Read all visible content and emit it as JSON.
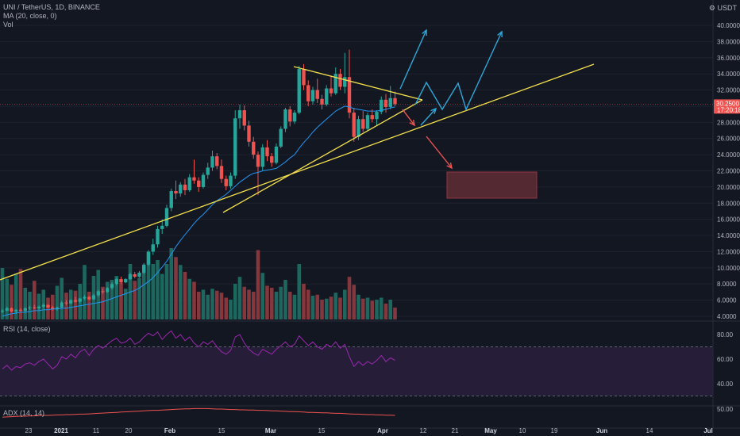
{
  "header": {
    "symbol": "UNI / TetherUS, 1D, BINANCE",
    "ma_label": "MA (20, close, 0)",
    "vol_label": "Vol",
    "rsi_label": "RSI (14, close)",
    "adx_label": "ADX (14, 14)",
    "currency": "USDT"
  },
  "price_tag": {
    "price": "30.2500",
    "countdown": "17:20:18",
    "color": "#ef5350"
  },
  "colors": {
    "background": "#131722",
    "up": "#26a69a",
    "down": "#ef5350",
    "ma": "#2196f3",
    "trendline": "#f4e04d",
    "arrow_up": "#2ca7d8",
    "arrow_down": "#ef5350",
    "rsi_line": "#9c27b0",
    "rsi_band": "#2a1f3d",
    "adx_line": "#ef5350",
    "target_box": "#5c2b33"
  },
  "chart_data": [
    {
      "type": "candlestick",
      "title": "UNI / TetherUS, 1D, BINANCE",
      "x_axis_labels": [
        "23",
        "2021",
        "11",
        "20",
        "Feb",
        "15",
        "Mar",
        "15",
        "Apr",
        "12",
        "21",
        "May",
        "10",
        "19",
        "Jun",
        "14",
        "Jul"
      ],
      "y_axis_labels": [
        "4.0000",
        "6.0000",
        "8.0000",
        "10.0000",
        "12.0000",
        "14.0000",
        "16.0000",
        "18.0000",
        "20.0000",
        "22.0000",
        "24.0000",
        "26.0000",
        "28.0000",
        "30.0000",
        "32.0000",
        "34.0000",
        "36.0000",
        "38.0000",
        "40.0000"
      ],
      "ylim": [
        4,
        41
      ],
      "ohlc": [
        [
          4.6,
          4.9,
          4.4,
          4.7
        ],
        [
          4.7,
          5.2,
          4.6,
          5.0
        ],
        [
          5.0,
          5.1,
          4.5,
          4.6
        ],
        [
          4.6,
          4.9,
          4.3,
          4.8
        ],
        [
          4.8,
          5.0,
          4.6,
          4.7
        ],
        [
          4.7,
          5.1,
          4.5,
          5.0
        ],
        [
          5.0,
          5.3,
          4.8,
          5.1
        ],
        [
          5.1,
          5.4,
          4.9,
          5.0
        ],
        [
          5.0,
          5.3,
          4.8,
          5.2
        ],
        [
          5.2,
          5.6,
          5.0,
          5.4
        ],
        [
          5.4,
          5.5,
          5.0,
          5.1
        ],
        [
          5.1,
          5.3,
          4.7,
          4.9
        ],
        [
          4.9,
          5.2,
          4.7,
          5.1
        ],
        [
          5.1,
          5.9,
          5.0,
          5.7
        ],
        [
          5.7,
          6.0,
          5.4,
          5.6
        ],
        [
          5.6,
          6.1,
          5.5,
          6.0
        ],
        [
          6.0,
          6.4,
          5.7,
          5.8
        ],
        [
          5.8,
          6.3,
          5.6,
          6.2
        ],
        [
          6.2,
          6.6,
          6.0,
          6.4
        ],
        [
          6.4,
          6.5,
          6.0,
          6.1
        ],
        [
          6.1,
          6.8,
          6.0,
          6.6
        ],
        [
          6.6,
          7.3,
          6.4,
          7.1
        ],
        [
          7.1,
          7.4,
          6.8,
          7.0
        ],
        [
          7.0,
          7.6,
          6.9,
          7.5
        ],
        [
          7.5,
          8.2,
          7.3,
          8.0
        ],
        [
          8.0,
          8.8,
          7.8,
          8.6
        ],
        [
          8.6,
          8.9,
          8.0,
          8.2
        ],
        [
          8.2,
          8.7,
          8.1,
          8.6
        ],
        [
          8.6,
          9.4,
          8.5,
          9.2
        ],
        [
          9.2,
          9.5,
          8.7,
          8.9
        ],
        [
          8.9,
          9.6,
          8.8,
          9.4
        ],
        [
          9.4,
          10.6,
          9.2,
          10.4
        ],
        [
          10.4,
          12.2,
          10.2,
          12.0
        ],
        [
          12.0,
          13.6,
          11.6,
          12.9
        ],
        [
          12.9,
          15.2,
          12.5,
          14.8
        ],
        [
          14.8,
          16.0,
          14.2,
          15.2
        ],
        [
          15.2,
          17.8,
          15.0,
          17.4
        ],
        [
          17.4,
          19.8,
          17.0,
          19.5
        ],
        [
          19.5,
          20.8,
          18.5,
          19.2
        ],
        [
          19.2,
          20.6,
          18.8,
          20.3
        ],
        [
          20.3,
          21.0,
          19.0,
          19.6
        ],
        [
          19.6,
          21.6,
          19.4,
          21.2
        ],
        [
          21.2,
          23.4,
          20.4,
          20.8
        ],
        [
          20.8,
          21.2,
          19.4,
          20.0
        ],
        [
          20.0,
          21.8,
          19.8,
          21.5
        ],
        [
          21.5,
          23.0,
          21.0,
          22.4
        ],
        [
          22.4,
          24.5,
          22.0,
          23.8
        ],
        [
          23.8,
          24.2,
          22.2,
          22.6
        ],
        [
          22.6,
          23.4,
          20.5,
          21.0
        ],
        [
          21.0,
          21.4,
          19.6,
          20.1
        ],
        [
          20.1,
          21.8,
          19.8,
          21.4
        ],
        [
          21.4,
          29.5,
          21.0,
          28.5
        ],
        [
          28.5,
          30.2,
          27.2,
          29.5
        ],
        [
          29.5,
          30.1,
          27.0,
          27.6
        ],
        [
          27.6,
          28.2,
          25.0,
          25.6
        ],
        [
          25.6,
          26.2,
          23.5,
          24.0
        ],
        [
          24.0,
          24.4,
          19.0,
          22.5
        ],
        [
          22.5,
          25.3,
          22.0,
          24.9
        ],
        [
          24.9,
          25.8,
          23.2,
          23.8
        ],
        [
          23.8,
          24.2,
          22.5,
          23.0
        ],
        [
          23.0,
          25.4,
          22.8,
          25.0
        ],
        [
          25.0,
          27.5,
          24.8,
          27.2
        ],
        [
          27.2,
          29.8,
          26.8,
          29.6
        ],
        [
          29.6,
          30.0,
          27.5,
          28.1
        ],
        [
          28.1,
          29.5,
          27.8,
          29.2
        ],
        [
          29.2,
          35.0,
          29.0,
          34.6
        ],
        [
          34.6,
          35.2,
          32.0,
          32.6
        ],
        [
          32.6,
          33.2,
          30.0,
          30.6
        ],
        [
          30.6,
          32.4,
          30.2,
          32.0
        ],
        [
          32.0,
          33.4,
          30.4,
          30.9
        ],
        [
          30.9,
          31.4,
          29.6,
          30.2
        ],
        [
          30.2,
          32.6,
          30.0,
          32.2
        ],
        [
          32.2,
          33.8,
          31.2,
          31.6
        ],
        [
          31.6,
          34.8,
          31.4,
          34.0
        ],
        [
          34.0,
          34.6,
          32.0,
          32.4
        ],
        [
          32.4,
          36.6,
          31.6,
          33.6
        ],
        [
          33.6,
          37.0,
          28.5,
          29.2
        ],
        [
          29.2,
          29.8,
          25.6,
          26.2
        ],
        [
          26.2,
          28.8,
          25.8,
          28.4
        ],
        [
          28.4,
          29.4,
          26.8,
          27.2
        ],
        [
          27.2,
          29.2,
          26.9,
          28.9
        ],
        [
          28.9,
          29.6,
          28.0,
          28.4
        ],
        [
          28.4,
          29.5,
          27.6,
          29.3
        ],
        [
          29.3,
          31.2,
          29.0,
          30.8
        ],
        [
          30.8,
          31.5,
          29.2,
          29.9
        ],
        [
          29.9,
          32.5,
          29.6,
          31.0
        ],
        [
          31.0,
          31.8,
          30.0,
          30.25
        ]
      ],
      "volume": [
        [
          5.2,
          1
        ],
        [
          4.1,
          1
        ],
        [
          3.5,
          0
        ],
        [
          4.6,
          1
        ],
        [
          5.1,
          0
        ],
        [
          3.2,
          1
        ],
        [
          2.8,
          1
        ],
        [
          3.9,
          0
        ],
        [
          2.6,
          1
        ],
        [
          3.0,
          1
        ],
        [
          2.2,
          0
        ],
        [
          2.5,
          0
        ],
        [
          3.4,
          1
        ],
        [
          4.2,
          1
        ],
        [
          2.7,
          0
        ],
        [
          3.0,
          1
        ],
        [
          2.9,
          0
        ],
        [
          3.6,
          1
        ],
        [
          5.5,
          1
        ],
        [
          2.8,
          0
        ],
        [
          4.4,
          1
        ],
        [
          5.0,
          1
        ],
        [
          3.3,
          0
        ],
        [
          3.8,
          1
        ],
        [
          4.0,
          1
        ],
        [
          4.4,
          1
        ],
        [
          3.7,
          0
        ],
        [
          3.1,
          1
        ],
        [
          5.6,
          1
        ],
        [
          3.9,
          0
        ],
        [
          4.2,
          1
        ],
        [
          5.4,
          1
        ],
        [
          6.8,
          1
        ],
        [
          5.6,
          1
        ],
        [
          6.0,
          1
        ],
        [
          4.6,
          1
        ],
        [
          5.6,
          1
        ],
        [
          7.2,
          1
        ],
        [
          6.3,
          0
        ],
        [
          5.5,
          1
        ],
        [
          4.8,
          0
        ],
        [
          4.1,
          1
        ],
        [
          3.8,
          0
        ],
        [
          2.8,
          0
        ],
        [
          3.0,
          1
        ],
        [
          2.5,
          1
        ],
        [
          3.1,
          1
        ],
        [
          2.9,
          0
        ],
        [
          2.7,
          0
        ],
        [
          2.2,
          0
        ],
        [
          2.0,
          1
        ],
        [
          3.6,
          1
        ],
        [
          4.3,
          1
        ],
        [
          3.3,
          0
        ],
        [
          3.0,
          0
        ],
        [
          2.8,
          0
        ],
        [
          7.0,
          0
        ],
        [
          4.7,
          1
        ],
        [
          3.4,
          0
        ],
        [
          3.2,
          0
        ],
        [
          2.8,
          1
        ],
        [
          3.3,
          1
        ],
        [
          4.0,
          1
        ],
        [
          2.8,
          0
        ],
        [
          2.5,
          1
        ],
        [
          5.6,
          1
        ],
        [
          3.6,
          0
        ],
        [
          3.0,
          0
        ],
        [
          2.4,
          1
        ],
        [
          2.5,
          0
        ],
        [
          2.0,
          0
        ],
        [
          2.1,
          1
        ],
        [
          2.3,
          0
        ],
        [
          2.7,
          1
        ],
        [
          2.2,
          0
        ],
        [
          3.0,
          1
        ],
        [
          4.3,
          0
        ],
        [
          3.5,
          0
        ],
        [
          2.5,
          1
        ],
        [
          2.1,
          0
        ],
        [
          2.2,
          1
        ],
        [
          1.9,
          0
        ],
        [
          2.0,
          1
        ],
        [
          2.2,
          1
        ],
        [
          1.6,
          0
        ],
        [
          2.0,
          1
        ],
        [
          1.2,
          0
        ]
      ],
      "ma20": [
        4.0,
        4.2,
        4.3,
        4.4,
        4.5,
        4.5,
        4.6,
        4.7,
        4.7,
        4.8,
        4.8,
        4.9,
        4.9,
        5.0,
        5.0,
        5.1,
        5.2,
        5.3,
        5.4,
        5.5,
        5.6,
        5.7,
        5.8,
        6.0,
        6.2,
        6.4,
        6.6,
        6.8,
        7.0,
        7.2,
        7.5,
        7.9,
        8.3,
        8.8,
        9.4,
        10.1,
        10.8,
        11.7,
        12.6,
        13.4,
        14.1,
        14.8,
        15.5,
        16.1,
        16.6,
        17.2,
        17.8,
        18.3,
        18.7,
        19.1,
        19.6,
        20.1,
        20.6,
        21.0,
        21.4,
        21.7,
        21.8,
        22.0,
        22.1,
        22.2,
        22.3,
        22.7,
        23.1,
        23.6,
        24.0,
        24.8,
        25.5,
        26.1,
        26.8,
        27.4,
        27.9,
        28.4,
        28.9,
        29.4,
        29.7,
        30.0,
        29.9,
        29.7,
        29.6,
        29.5,
        29.4,
        29.4,
        29.4,
        29.5,
        29.6,
        29.8,
        29.9
      ],
      "rsi": [
        52,
        55,
        51,
        54,
        53,
        56,
        57,
        55,
        58,
        60,
        56,
        52,
        55,
        62,
        60,
        64,
        61,
        66,
        68,
        63,
        68,
        71,
        69,
        72,
        75,
        77,
        73,
        74,
        77,
        72,
        74,
        78,
        81,
        79,
        82,
        76,
        80,
        83,
        77,
        80,
        75,
        78,
        73,
        70,
        74,
        72,
        75,
        70,
        66,
        64,
        67,
        78,
        80,
        73,
        68,
        65,
        63,
        68,
        66,
        64,
        68,
        71,
        74,
        70,
        72,
        79,
        75,
        71,
        74,
        70,
        68,
        72,
        70,
        74,
        69,
        72,
        62,
        54,
        58,
        55,
        58,
        56,
        59,
        63,
        58,
        61,
        59
      ],
      "rsi_levels": [
        70,
        30
      ],
      "rsi_axis_labels": [
        "80.00",
        "60.00",
        "40.00"
      ],
      "adx": [
        18,
        19,
        20,
        21,
        22,
        22,
        23,
        23,
        24,
        25,
        25,
        26,
        27,
        27,
        28,
        28,
        29,
        30,
        30,
        31,
        32,
        33,
        34,
        35,
        36,
        37,
        38,
        39,
        40,
        41,
        42,
        43,
        44,
        45,
        45,
        46,
        47,
        48,
        49,
        50,
        51,
        51,
        52,
        52,
        52,
        52,
        51,
        50,
        50,
        49,
        48,
        48,
        47,
        47,
        46,
        46,
        45,
        45,
        44,
        43,
        43,
        42,
        41,
        40,
        40,
        39,
        38,
        37,
        37,
        36,
        35,
        35,
        34,
        33,
        33,
        32,
        31,
        30,
        30,
        29,
        28,
        28,
        27,
        27,
        26,
        26,
        25
      ],
      "adx_axis_labels": [
        "50.00"
      ]
    }
  ]
}
